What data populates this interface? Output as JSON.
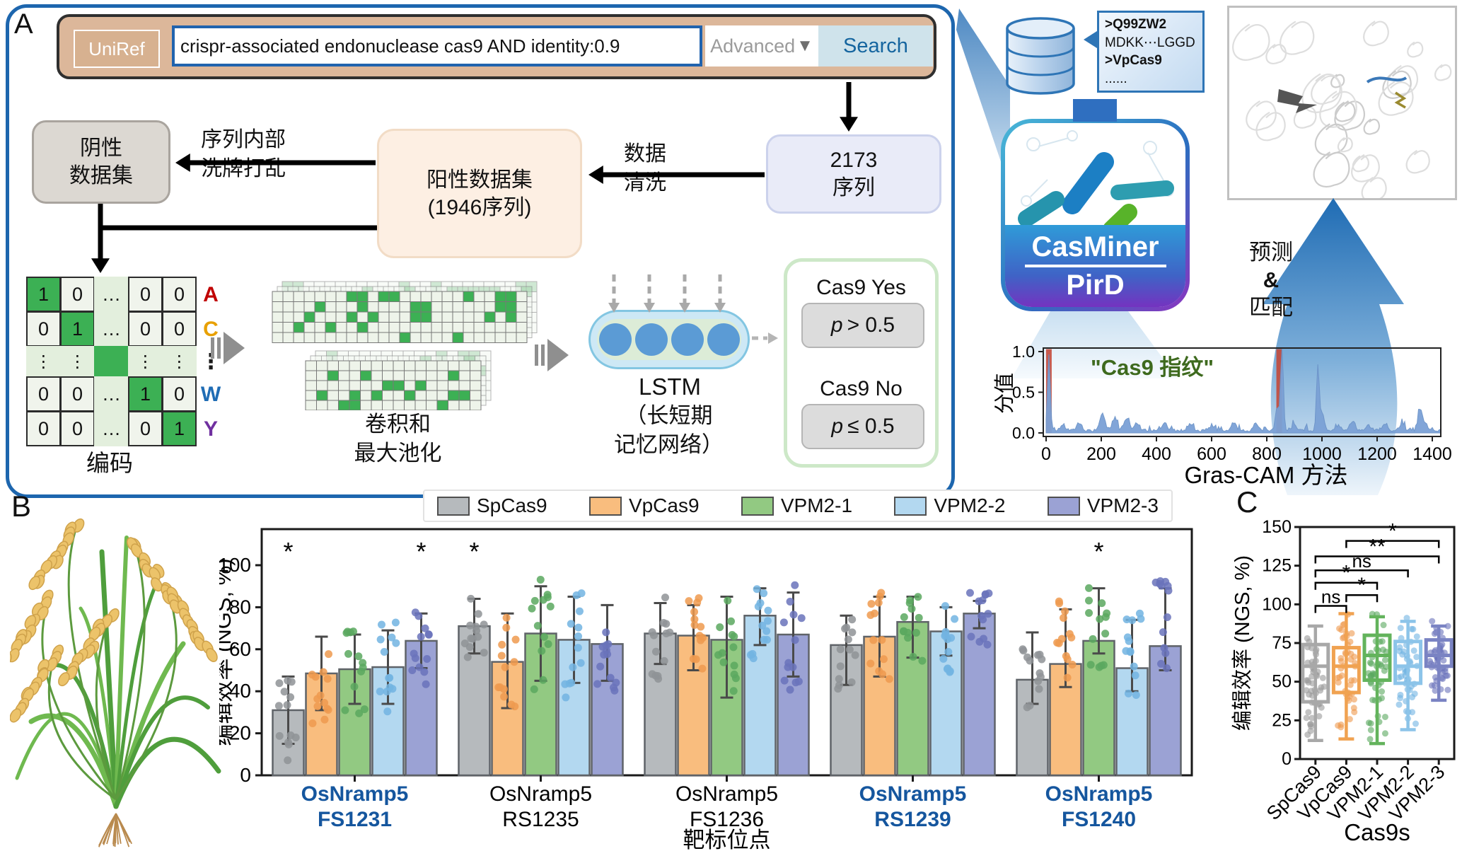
{
  "panel_a": {
    "letter": "A",
    "search": {
      "tab": "UniRef",
      "query": "crispr-associated endonuclease cas9 AND identity:0.9",
      "advanced_label": "Advanced",
      "advanced_arrow": "▼",
      "button": "Search"
    },
    "negative_box": [
      "阴性",
      "数据集"
    ],
    "shuffle_label": [
      "序列内部",
      "洗牌打乱"
    ],
    "positive_box": [
      "阳性数据集",
      "(1946序列)"
    ],
    "clean_label": [
      "数据",
      "清洗"
    ],
    "sequence_box": [
      "2173",
      "序列"
    ],
    "matrix": {
      "cells": [
        [
          "1",
          "0",
          "…",
          "0",
          "0"
        ],
        [
          "0",
          "1",
          "…",
          "0",
          "0"
        ],
        [
          "⋮",
          "⋮",
          "",
          "⋮",
          "⋮"
        ],
        [
          "0",
          "0",
          "…",
          "1",
          "0"
        ],
        [
          "0",
          "0",
          "…",
          "0",
          "1"
        ]
      ],
      "active": [
        [
          0,
          0
        ],
        [
          1,
          1
        ],
        [
          2,
          2
        ],
        [
          3,
          3
        ],
        [
          4,
          4
        ]
      ],
      "row_labels": [
        "A",
        "C",
        "⋮",
        "W",
        "Y"
      ],
      "row_label_colors": [
        "#c00000",
        "#e8a000",
        "#1a1a1a",
        "#1f6cb4",
        "#7030a0"
      ],
      "caption": "编码"
    },
    "conv_label": [
      "卷积和",
      "最大池化"
    ],
    "lstm_title": "LSTM",
    "lstm_sub": [
      "（长短期",
      "记忆网络）"
    ],
    "results": {
      "yes_label": "Cas9 Yes",
      "yes_p_sym": "p",
      "yes_p_rest": "> 0.5",
      "no_label": "Cas9 No",
      "no_p_sym": "p",
      "no_p_rest": "≤ 0.5"
    }
  },
  "right_panel": {
    "fasta": [
      {
        "text": ">Q99ZW2",
        "bold": true
      },
      {
        "text": "MDKK⋯LGGD",
        "bold": false
      },
      {
        "text": ">VpCas9",
        "bold": true
      },
      {
        "text": "......",
        "bold": false
      }
    ],
    "app_line1": "CasMiner",
    "app_line2": "PirD",
    "predict_lines": [
      "预测",
      "&",
      "匹配"
    ]
  },
  "panel_b_letter": "B",
  "panel_c_letter": "C",
  "chart_data": [
    {
      "type": "area",
      "name": "grascam",
      "title": "\"Cas9 指纹\"",
      "title_color": "#3e6a1e",
      "xlabel": "Gras-CAM 方法",
      "ylabel": "分值",
      "xticks": [
        0,
        200,
        400,
        600,
        800,
        1000,
        1200,
        1400
      ],
      "yticks": [
        "0.0",
        "0.5",
        "1.0"
      ],
      "xlim": [
        0,
        1450
      ],
      "ylim": [
        0,
        1.05
      ],
      "line_color": "#7ba1d6",
      "red_marks": [
        10,
        845
      ],
      "red_color": "#c44536",
      "peaks": [
        [
          10,
          0.95
        ],
        [
          60,
          0.08
        ],
        [
          120,
          0.1
        ],
        [
          205,
          0.2
        ],
        [
          248,
          0.15
        ],
        [
          292,
          0.15
        ],
        [
          330,
          0.1
        ],
        [
          430,
          0.1
        ],
        [
          520,
          0.07
        ],
        [
          600,
          0.06
        ],
        [
          680,
          0.1
        ],
        [
          760,
          0.09
        ],
        [
          838,
          0.28
        ],
        [
          855,
          1.0
        ],
        [
          900,
          0.07
        ],
        [
          985,
          0.75
        ],
        [
          1000,
          0.2
        ],
        [
          1060,
          0.06
        ],
        [
          1110,
          0.12
        ],
        [
          1170,
          0.06
        ],
        [
          1230,
          0.09
        ],
        [
          1290,
          0.09
        ],
        [
          1355,
          0.26
        ],
        [
          1372,
          0.1
        ]
      ]
    },
    {
      "type": "bar",
      "name": "editing-efficiency-by-site",
      "ylabel": "编辑效率 (NGS, %)",
      "xlabel": "靶标位点",
      "yticks": [
        0,
        20,
        40,
        60,
        80,
        100
      ],
      "ylim": [
        0,
        117
      ],
      "highlight_color": "#15569e",
      "categories": [
        {
          "lines": [
            "OsNramp5",
            "FS1231"
          ],
          "highlight": true
        },
        {
          "lines": [
            "OsNramp5",
            "RS1235"
          ],
          "highlight": false
        },
        {
          "lines": [
            "OsNramp5",
            "FS1236"
          ],
          "highlight": false
        },
        {
          "lines": [
            "OsNramp5",
            "RS1239"
          ],
          "highlight": true
        },
        {
          "lines": [
            "OsNramp5",
            "FS1240"
          ],
          "highlight": true
        }
      ],
      "series": [
        {
          "name": "SpCas9",
          "color": "#b6babd",
          "dot_color": "#8f9396",
          "values": [
            31,
            71,
            67.5,
            62,
            45.5
          ],
          "err_lo": [
            15,
            58,
            53,
            43,
            34
          ],
          "err_hi": [
            47,
            84,
            82,
            76,
            68
          ]
        },
        {
          "name": "VpCas9",
          "color": "#f9bd7e",
          "dot_color": "#ef9a4f",
          "values": [
            48.5,
            54,
            66.5,
            66,
            53
          ],
          "err_lo": [
            31,
            32,
            50,
            47,
            42
          ],
          "err_hi": [
            66,
            77,
            81,
            85,
            79
          ]
        },
        {
          "name": "VPM2-1",
          "color": "#92c982",
          "dot_color": "#5aa85f",
          "values": [
            50.5,
            67.5,
            64.5,
            73,
            64
          ],
          "err_lo": [
            34,
            45,
            37,
            56,
            58
          ],
          "err_hi": [
            67,
            90,
            85,
            85,
            89
          ]
        },
        {
          "name": "VPM2-2",
          "color": "#b3d8f0",
          "dot_color": "#72b4e2",
          "values": [
            51.5,
            64.5,
            76,
            68.5,
            51
          ],
          "err_lo": [
            34,
            44,
            62,
            57,
            40
          ],
          "err_hi": [
            69,
            85,
            89,
            80,
            74
          ]
        },
        {
          "name": "VPM2-3",
          "color": "#9ba2d4",
          "dot_color": "#6a73bb",
          "values": [
            64,
            62.5,
            67,
            77,
            61.5
          ],
          "err_lo": [
            51,
            45,
            47,
            70,
            50
          ],
          "err_hi": [
            77,
            81,
            87,
            83,
            89
          ]
        }
      ],
      "asterisks": [
        {
          "group": 0,
          "series": 0,
          "mark": "*"
        },
        {
          "group": 0,
          "series": 4,
          "mark": "*"
        },
        {
          "group": 1,
          "series": 0,
          "mark": "*"
        },
        {
          "group": 4,
          "series": 2,
          "mark": "*"
        }
      ]
    },
    {
      "type": "box",
      "name": "editing-efficiency-by-cas9",
      "ylabel": "编辑效率 (NGS, %)",
      "xlabel": "Cas9s",
      "yticks": [
        0,
        25,
        50,
        75,
        100,
        125,
        150
      ],
      "ylim": [
        0,
        150
      ],
      "groups": [
        {
          "name": "SpCas9",
          "color": "#a8a8a8",
          "dot_color": "#9a9a9a",
          "whisker_lo": 12,
          "q1": 37,
          "median": 60,
          "q3": 74,
          "whisker_hi": 86
        },
        {
          "name": "VpCas9",
          "color": "#f0a251",
          "dot_color": "#ef9a4f",
          "whisker_lo": 13,
          "q1": 43,
          "median": 60,
          "q3": 72,
          "whisker_hi": 94
        },
        {
          "name": "VPM2-1",
          "color": "#63b35c",
          "dot_color": "#5aa85f",
          "whisker_lo": 10,
          "q1": 51,
          "median": 67,
          "q3": 80,
          "whisker_hi": 92
        },
        {
          "name": "VPM2-2",
          "color": "#8cc4e9",
          "dot_color": "#72b4e2",
          "whisker_lo": 19,
          "q1": 49,
          "median": 60,
          "q3": 76,
          "whisker_hi": 89
        },
        {
          "name": "VPM2-3",
          "color": "#7a83c3",
          "dot_color": "#6a73bb",
          "whisker_lo": 38,
          "q1": 60,
          "median": 67,
          "q3": 77,
          "whisker_hi": 86
        }
      ],
      "brackets": [
        {
          "from": 0,
          "to": 1,
          "y": 99,
          "label": "ns"
        },
        {
          "from": 1,
          "to": 2,
          "y": 106,
          "label": "*"
        },
        {
          "from": 0,
          "to": 2,
          "y": 114,
          "label": "*"
        },
        {
          "from": 0,
          "to": 3,
          "y": 122,
          "label": "ns"
        },
        {
          "from": 0,
          "to": 4,
          "y": 131,
          "label": "**"
        },
        {
          "from": 1,
          "to": 4,
          "y": 141,
          "label": "*"
        }
      ]
    }
  ],
  "legend": {
    "entries": [
      {
        "label": "SpCas9",
        "color": "#b6babd"
      },
      {
        "label": "VpCas9",
        "color": "#f9bd7e"
      },
      {
        "label": "VPM2-1",
        "color": "#92c982"
      },
      {
        "label": "VPM2-2",
        "color": "#b3d8f0"
      },
      {
        "label": "VPM2-3",
        "color": "#9ba2d4"
      }
    ]
  }
}
